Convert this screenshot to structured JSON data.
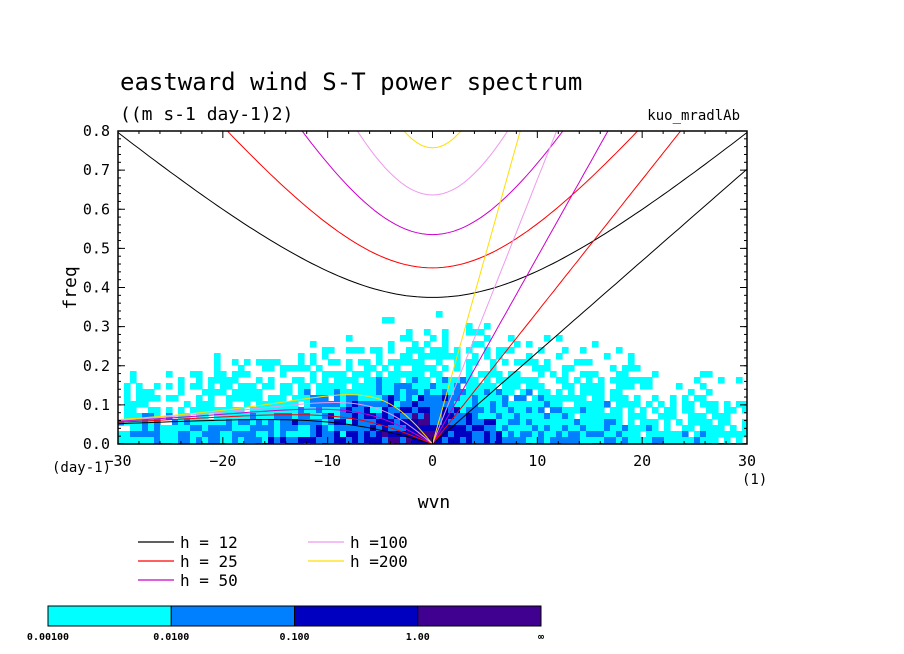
{
  "chart_data": {
    "type": "heatmap",
    "title": "eastward wind S-T power spectrum",
    "subtitle": "((m s-1 day-1)2)",
    "run_label": "kuo_mradlAb",
    "xlabel": "wvn",
    "ylabel": "freq",
    "x_unit": "(1)",
    "y_unit": "(day-1)",
    "xlim": [
      -30,
      30
    ],
    "ylim": [
      0,
      0.8
    ],
    "x_ticks": [
      "−30",
      "−20",
      "−10",
      "0",
      "10",
      "20",
      "30"
    ],
    "x_tick_values": [
      -30,
      -20,
      -10,
      0,
      10,
      20,
      30
    ],
    "y_ticks": [
      "0.0",
      "0.1",
      "0.2",
      "0.3",
      "0.4",
      "0.5",
      "0.6",
      "0.7",
      "0.8"
    ],
    "y_tick_values": [
      0,
      0.1,
      0.2,
      0.3,
      0.4,
      0.5,
      0.6,
      0.7,
      0.8
    ],
    "legend_entries": [
      {
        "label": "h = 12",
        "h": 12,
        "color": "#000000"
      },
      {
        "label": "h = 25",
        "h": 25,
        "color": "#ff0000"
      },
      {
        "label": "h = 50",
        "h": 50,
        "color": "#cc00cc"
      },
      {
        "label": "h =100",
        "h": 100,
        "color": "#ee99ee"
      },
      {
        "label": "h =200",
        "h": 200,
        "color": "#ffdd00"
      }
    ],
    "colorbar": {
      "colors": [
        "#00ffff",
        "#0080ff",
        "#0000c0",
        "#400090"
      ],
      "labels": [
        "0.00100",
        "0.0100",
        "0.100",
        "1.00",
        "∞"
      ]
    }
  }
}
